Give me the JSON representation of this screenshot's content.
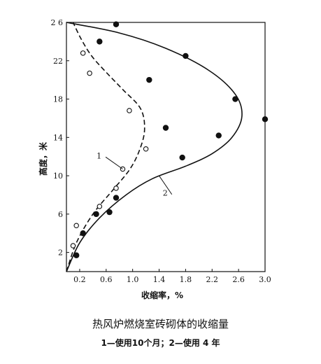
{
  "chart_data": {
    "type": "scatter",
    "title": "热风炉燃烧室砖砌体的收缩量",
    "legend_text": "1—使用10个月；2—使用 4 年",
    "xlabel": "收缩率，%",
    "ylabel": "高度，米",
    "xlim": [
      0.0,
      3.0
    ],
    "ylim": [
      0,
      26
    ],
    "xticks": [
      0.2,
      0.6,
      1.0,
      1.4,
      1.8,
      2.2,
      2.6,
      3.0
    ],
    "xtick_labels": [
      "0.2",
      "0.6",
      "1.0",
      "1.4",
      "1.8",
      "2.2",
      "2.6",
      "3.0"
    ],
    "yticks": [
      2,
      6,
      10,
      14,
      18,
      22,
      26
    ],
    "ytick_labels": [
      "2",
      "6",
      "10",
      "14",
      "18",
      "22",
      "2 6"
    ],
    "grid": false,
    "series": [
      {
        "name": "1",
        "marker": "open-circle",
        "line_style": "dashed",
        "points": [
          {
            "x": 0.1,
            "y": 2.7
          },
          {
            "x": 0.15,
            "y": 4.8
          },
          {
            "x": 0.5,
            "y": 6.8
          },
          {
            "x": 0.75,
            "y": 8.7
          },
          {
            "x": 0.85,
            "y": 10.7
          },
          {
            "x": 1.2,
            "y": 12.8
          },
          {
            "x": 0.95,
            "y": 16.8
          },
          {
            "x": 0.35,
            "y": 20.7
          },
          {
            "x": 0.25,
            "y": 22.8
          }
        ],
        "curve": [
          {
            "x": 0.0,
            "y": 0.0
          },
          {
            "x": 0.15,
            "y": 3.0
          },
          {
            "x": 0.4,
            "y": 6.0
          },
          {
            "x": 0.7,
            "y": 8.5
          },
          {
            "x": 0.95,
            "y": 10.6
          },
          {
            "x": 1.1,
            "y": 12.6
          },
          {
            "x": 1.18,
            "y": 14.8
          },
          {
            "x": 1.12,
            "y": 17.0
          },
          {
            "x": 0.85,
            "y": 19.0
          },
          {
            "x": 0.6,
            "y": 20.8
          },
          {
            "x": 0.38,
            "y": 22.5
          },
          {
            "x": 0.22,
            "y": 24.3
          },
          {
            "x": 0.1,
            "y": 26.0
          }
        ]
      },
      {
        "name": "2",
        "marker": "filled-circle",
        "line_style": "solid",
        "points": [
          {
            "x": 0.15,
            "y": 1.7
          },
          {
            "x": 0.25,
            "y": 4.0
          },
          {
            "x": 0.45,
            "y": 6.0
          },
          {
            "x": 0.65,
            "y": 6.2
          },
          {
            "x": 0.75,
            "y": 7.7
          },
          {
            "x": 1.75,
            "y": 11.9
          },
          {
            "x": 2.3,
            "y": 14.2
          },
          {
            "x": 1.5,
            "y": 15.0
          },
          {
            "x": 2.55,
            "y": 18.0
          },
          {
            "x": 3.0,
            "y": 15.9
          },
          {
            "x": 1.25,
            "y": 20.0
          },
          {
            "x": 1.8,
            "y": 22.5
          },
          {
            "x": 0.5,
            "y": 24.0
          },
          {
            "x": 0.75,
            "y": 25.8
          }
        ],
        "curve": [
          {
            "x": 0.0,
            "y": 0.0
          },
          {
            "x": 0.2,
            "y": 3.0
          },
          {
            "x": 0.5,
            "y": 5.6
          },
          {
            "x": 0.9,
            "y": 8.0
          },
          {
            "x": 1.3,
            "y": 9.7
          },
          {
            "x": 1.8,
            "y": 11.0
          },
          {
            "x": 2.2,
            "y": 12.3
          },
          {
            "x": 2.5,
            "y": 14.0
          },
          {
            "x": 2.65,
            "y": 16.2
          },
          {
            "x": 2.55,
            "y": 18.5
          },
          {
            "x": 2.15,
            "y": 21.0
          },
          {
            "x": 1.5,
            "y": 23.3
          },
          {
            "x": 0.8,
            "y": 24.9
          },
          {
            "x": 0.0,
            "y": 26.0
          }
        ]
      }
    ],
    "annotations": [
      {
        "text": "1",
        "target": {
          "x": 0.85,
          "y": 10.7
        },
        "label_at": {
          "x": 0.55,
          "y": 12.1
        }
      },
      {
        "text": "2",
        "target": {
          "x": 1.4,
          "y": 10.0
        },
        "label_at": {
          "x": 1.55,
          "y": 8.2
        }
      }
    ]
  }
}
